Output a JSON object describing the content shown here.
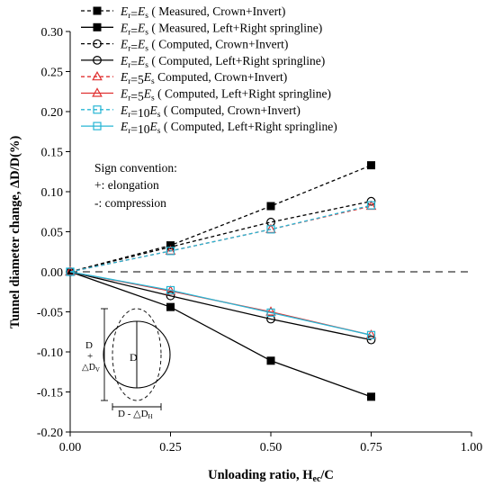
{
  "chart_data": {
    "type": "line",
    "xlabel": "Unloading ratio, H",
    "xlabel_sub": "ec",
    "xlabel_tail": "/C",
    "ylabel": "Tunnel diameter change, ΔD/D(%)",
    "xlim": [
      0,
      1
    ],
    "ylim": [
      -0.2,
      0.3
    ],
    "x_ticks": [
      0,
      0.25,
      0.5,
      0.75,
      1.0
    ],
    "x_tick_labels": [
      "0.00",
      "0.25",
      "0.50",
      "0.75",
      "1.00"
    ],
    "y_ticks": [
      -0.2,
      -0.15,
      -0.1,
      -0.05,
      0,
      0.05,
      0.1,
      0.15,
      0.2,
      0.25,
      0.3
    ],
    "y_tick_labels": [
      "-0.20",
      "-0.15",
      "-0.10",
      "-0.05",
      "0.00",
      "0.05",
      "0.10",
      "0.15",
      "0.20",
      "0.25",
      "0.30"
    ],
    "zero_line": "dashed",
    "grid": false,
    "legend_position": "top-right",
    "series": [
      {
        "name": "Er=Es ( Measured, Crown+Invert)",
        "legend_pre": "( Measured, Crown+Invert)",
        "mult": "",
        "marker": "square-filled",
        "dash": "dashed",
        "color": "#000000",
        "x": [
          0,
          0.25,
          0.5,
          0.75
        ],
        "y": [
          0,
          0.033,
          0.082,
          0.133
        ]
      },
      {
        "name": "Er=Es ( Measured, Left+Right springline)",
        "legend_pre": "( Measured, Left+Right springline)",
        "mult": "",
        "marker": "square-filled",
        "dash": "solid",
        "color": "#000000",
        "x": [
          0,
          0.25,
          0.5,
          0.75
        ],
        "y": [
          0,
          -0.044,
          -0.111,
          -0.156
        ]
      },
      {
        "name": "Er=Es ( Computed, Crown+Invert)",
        "legend_pre": "( Computed, Crown+Invert)",
        "mult": "",
        "marker": "circle-open",
        "dash": "dashed",
        "color": "#000000",
        "x": [
          0,
          0.25,
          0.5,
          0.75
        ],
        "y": [
          0,
          0.031,
          0.062,
          0.088
        ]
      },
      {
        "name": "Er=Es ( Computed, Left+Right springline)",
        "legend_pre": "( Computed, Left+Right springline)",
        "mult": "",
        "marker": "circle-open",
        "dash": "solid",
        "color": "#000000",
        "x": [
          0,
          0.25,
          0.5,
          0.75
        ],
        "y": [
          0,
          -0.03,
          -0.059,
          -0.085
        ]
      },
      {
        "name": "Er=5Es Computed, Crown+Invert)",
        "legend_pre": "Computed, Crown+Invert)",
        "mult": "5",
        "marker": "triangle-open",
        "dash": "dashed",
        "color": "#e03030",
        "x": [
          0,
          0.25,
          0.5,
          0.75
        ],
        "y": [
          0,
          0.026,
          0.053,
          0.082
        ]
      },
      {
        "name": "Er=5Es ( Computed, Left+Right springline)",
        "legend_pre": "( Computed, Left+Right springline)",
        "mult": "5",
        "marker": "triangle-open",
        "dash": "solid",
        "color": "#e03030",
        "x": [
          0,
          0.25,
          0.5,
          0.75
        ],
        "y": [
          0,
          -0.024,
          -0.05,
          -0.079
        ]
      },
      {
        "name": "Er=10Es ( Computed, Crown+Invert)",
        "legend_pre": "( Computed, Crown+Invert)",
        "mult": "10",
        "marker": "square-open",
        "dash": "dashed",
        "color": "#27b6d4",
        "x": [
          0,
          0.25,
          0.5,
          0.75
        ],
        "y": [
          0,
          0.026,
          0.053,
          0.083
        ]
      },
      {
        "name": "Er=10Es ( Computed, Left+Right springline)",
        "legend_pre": "( Computed, Left+Right springline)",
        "mult": "10",
        "marker": "square-open",
        "dash": "solid",
        "color": "#27b6d4",
        "x": [
          0,
          0.25,
          0.5,
          0.75
        ],
        "y": [
          0,
          -0.023,
          -0.051,
          -0.079
        ]
      }
    ],
    "sign_convention": {
      "title": "Sign convention:",
      "line1": "+: elongation",
      "line2": "-: compression"
    },
    "inset": {
      "d_label": "D",
      "vertical_label_top": "D",
      "vertical_label_plus": "+",
      "vertical_label_delta": "△D",
      "vertical_label_sub": "V",
      "horizontal_label": "D - △D",
      "horizontal_label_sub": "H"
    }
  }
}
